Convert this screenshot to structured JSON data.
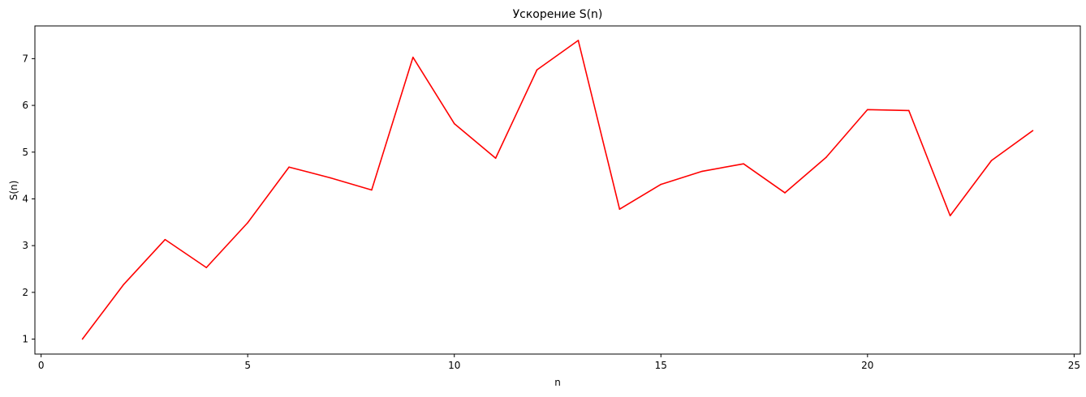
{
  "chart_data": {
    "type": "line",
    "title": "Ускорение S(n)",
    "xlabel": "n",
    "ylabel": "S(n)",
    "xlim": [
      -0.15,
      25.15
    ],
    "ylim": [
      0.68,
      7.7
    ],
    "xticks": [
      0,
      5,
      10,
      15,
      20,
      25
    ],
    "yticks": [
      1,
      2,
      3,
      4,
      5,
      6,
      7
    ],
    "grid": false,
    "series": [
      {
        "color": "#ff0000",
        "x": [
          1,
          2,
          3,
          4,
          5,
          6,
          7,
          8,
          9,
          10,
          11,
          12,
          13,
          14,
          15,
          16,
          17,
          18,
          19,
          20,
          21,
          22,
          23,
          24
        ],
        "y": [
          1.0,
          2.17,
          3.13,
          2.53,
          3.49,
          4.68,
          4.45,
          4.19,
          7.03,
          5.61,
          4.87,
          6.76,
          7.39,
          3.78,
          4.31,
          4.59,
          4.75,
          4.13,
          4.89,
          5.91,
          5.89,
          3.64,
          4.82,
          5.46
        ]
      }
    ]
  }
}
